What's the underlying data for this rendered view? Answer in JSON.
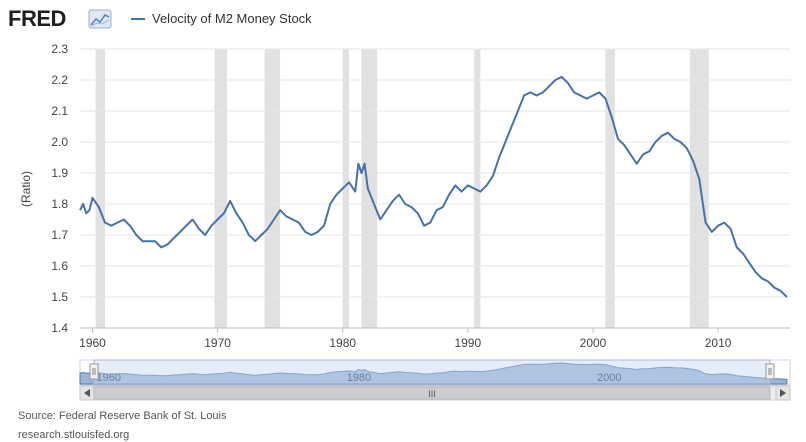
{
  "brand": {
    "name": "FRED"
  },
  "legend": {
    "series_name": "Velocity of M2 Money Stock"
  },
  "colors": {
    "series": "#4572a7",
    "recession": "#e1e1e1",
    "grid": "#e6e6e6",
    "navigator_fill": "#9db4d6",
    "navigator_mask": "#c6d8ef"
  },
  "source": {
    "line1": "Source: Federal Reserve Bank of St. Louis",
    "line2": "research.stlouisfed.org"
  },
  "navigator": {
    "labels": [
      "1960",
      "1980",
      "2000"
    ],
    "scrollbar_grip": "III"
  },
  "chart_data": {
    "type": "line",
    "title": "",
    "xlabel": "",
    "ylabel": "(Ratio)",
    "xlim": [
      1959,
      2015.75
    ],
    "ylim": [
      1.4,
      2.3
    ],
    "x_ticks": [
      1960,
      1970,
      1980,
      1990,
      2000,
      2010
    ],
    "y_ticks": [
      1.4,
      1.5,
      1.6,
      1.7,
      1.8,
      1.9,
      2.0,
      2.1,
      2.2,
      2.3
    ],
    "grid": "horizontal",
    "legend": "top-left",
    "recessions": [
      [
        1960.25,
        1961.0
      ],
      [
        1969.75,
        1970.75
      ],
      [
        1973.75,
        1975.0
      ],
      [
        1980.0,
        1980.5
      ],
      [
        1981.5,
        1982.75
      ],
      [
        1990.5,
        1991.0
      ],
      [
        2001.0,
        2001.75
      ],
      [
        2007.75,
        2009.25
      ]
    ],
    "series": [
      {
        "name": "Velocity of M2 Money Stock",
        "x": [
          1959.0,
          1959.25,
          1959.5,
          1959.75,
          1960.0,
          1960.5,
          1961.0,
          1961.5,
          1962.0,
          1962.5,
          1963.0,
          1963.5,
          1964.0,
          1964.5,
          1965.0,
          1965.5,
          1966.0,
          1966.5,
          1967.0,
          1967.5,
          1968.0,
          1968.5,
          1969.0,
          1969.5,
          1970.0,
          1970.5,
          1971.0,
          1971.5,
          1972.0,
          1972.5,
          1973.0,
          1973.5,
          1974.0,
          1974.5,
          1975.0,
          1975.5,
          1976.0,
          1976.5,
          1977.0,
          1977.5,
          1978.0,
          1978.5,
          1979.0,
          1979.5,
          1980.0,
          1980.5,
          1981.0,
          1981.25,
          1981.5,
          1981.75,
          1982.0,
          1982.5,
          1983.0,
          1983.5,
          1984.0,
          1984.5,
          1985.0,
          1985.5,
          1986.0,
          1986.5,
          1987.0,
          1987.5,
          1988.0,
          1988.5,
          1989.0,
          1989.5,
          1990.0,
          1990.5,
          1991.0,
          1991.5,
          1992.0,
          1992.5,
          1993.0,
          1993.5,
          1994.0,
          1994.5,
          1995.0,
          1995.5,
          1996.0,
          1996.5,
          1997.0,
          1997.5,
          1998.0,
          1998.5,
          1999.0,
          1999.5,
          2000.0,
          2000.5,
          2001.0,
          2001.5,
          2002.0,
          2002.5,
          2003.0,
          2003.5,
          2004.0,
          2004.5,
          2005.0,
          2005.5,
          2006.0,
          2006.5,
          2007.0,
          2007.5,
          2008.0,
          2008.5,
          2009.0,
          2009.5,
          2010.0,
          2010.5,
          2011.0,
          2011.5,
          2012.0,
          2012.5,
          2013.0,
          2013.5,
          2014.0,
          2014.5,
          2015.0,
          2015.5
        ],
        "values": [
          1.78,
          1.8,
          1.77,
          1.78,
          1.82,
          1.79,
          1.74,
          1.73,
          1.74,
          1.75,
          1.73,
          1.7,
          1.68,
          1.68,
          1.68,
          1.66,
          1.67,
          1.69,
          1.71,
          1.73,
          1.75,
          1.72,
          1.7,
          1.73,
          1.75,
          1.77,
          1.81,
          1.77,
          1.74,
          1.7,
          1.68,
          1.7,
          1.72,
          1.75,
          1.78,
          1.76,
          1.75,
          1.74,
          1.71,
          1.7,
          1.71,
          1.73,
          1.8,
          1.83,
          1.85,
          1.87,
          1.84,
          1.93,
          1.9,
          1.93,
          1.85,
          1.8,
          1.75,
          1.78,
          1.81,
          1.83,
          1.8,
          1.79,
          1.77,
          1.73,
          1.74,
          1.78,
          1.79,
          1.83,
          1.86,
          1.84,
          1.86,
          1.85,
          1.84,
          1.86,
          1.89,
          1.95,
          2.0,
          2.05,
          2.1,
          2.15,
          2.16,
          2.15,
          2.16,
          2.18,
          2.2,
          2.21,
          2.19,
          2.16,
          2.15,
          2.14,
          2.15,
          2.16,
          2.14,
          2.08,
          2.01,
          1.99,
          1.96,
          1.93,
          1.96,
          1.97,
          2.0,
          2.02,
          2.03,
          2.01,
          2.0,
          1.98,
          1.94,
          1.88,
          1.74,
          1.71,
          1.73,
          1.74,
          1.72,
          1.66,
          1.64,
          1.61,
          1.58,
          1.56,
          1.55,
          1.53,
          1.52,
          1.5
        ]
      }
    ]
  }
}
